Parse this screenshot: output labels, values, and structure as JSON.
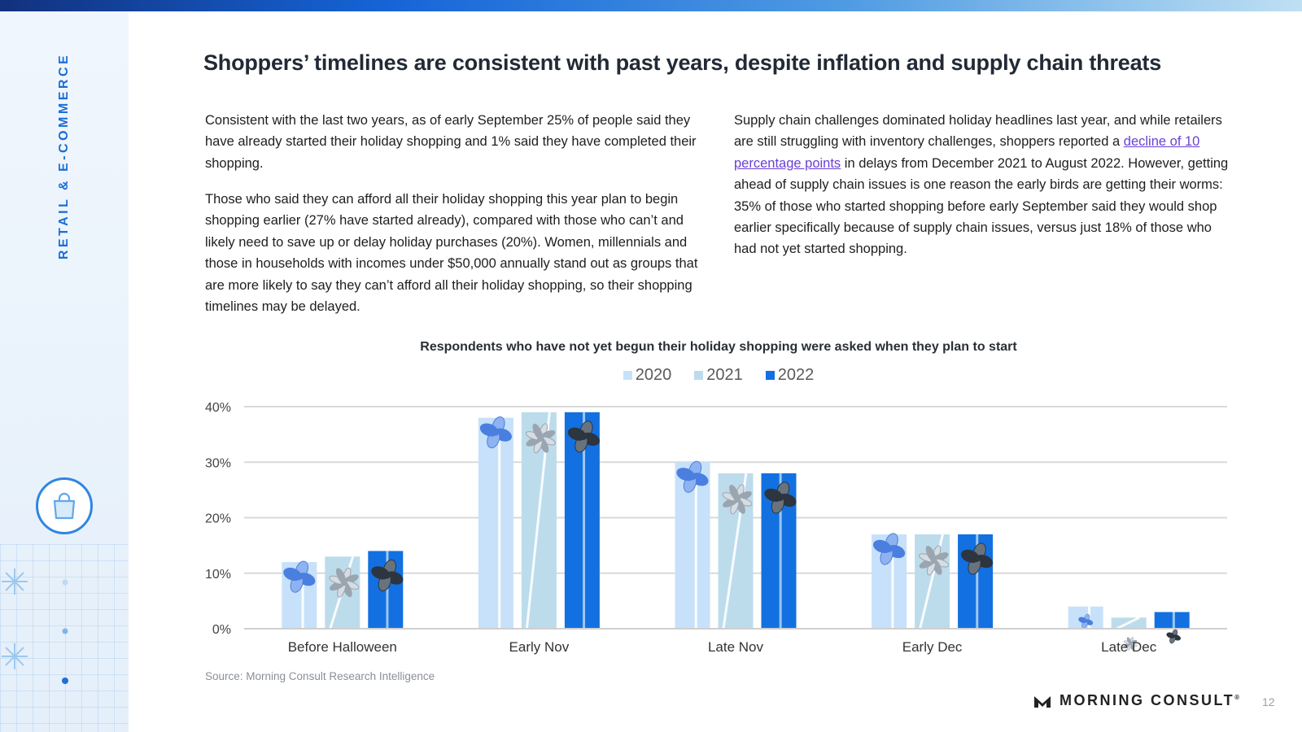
{
  "header": {
    "section": "RETAIL & E-COMMERCE",
    "title": "Shoppers’ timelines are consistent with past years, despite inflation and supply chain threats"
  },
  "body": {
    "p1": "Consistent with the last two years, as of early September 25% of people said they have already started their holiday shopping and 1% said they have completed their shopping.",
    "p2": "Those who said they can afford all their holiday shopping this year plan to begin shopping earlier (27% have started already), compared with those who can’t and likely need to save up or delay holiday purchases (20%). Women, millennials and those in households with incomes under $50,000 annually stand out as groups that are more likely to say they can’t afford all their holiday shopping, so their shopping timelines may be delayed.",
    "p3_before": "Supply chain challenges dominated holiday headlines last year, and while retailers are still struggling with inventory challenges, shoppers reported a ",
    "p3_link": "decline of 10 percentage points",
    "p3_after": " in delays from December 2021 to August 2022. However, getting ahead of supply chain issues is one reason the early birds are getting their worms: 35% of those who started shopping before early September said they would shop earlier specifically because of supply chain issues, versus just 18% of those who had not yet started shopping."
  },
  "chart_data": {
    "type": "bar",
    "title": "Respondents who have not yet begun their holiday shopping were asked when they plan to start",
    "categories": [
      "Before Halloween",
      "Early Nov",
      "Late Nov",
      "Early Dec",
      "Late Dec"
    ],
    "series": [
      {
        "name": "2020",
        "values": [
          12,
          38,
          30,
          17,
          4
        ],
        "color": "#c7e1fa"
      },
      {
        "name": "2021",
        "values": [
          13,
          39,
          28,
          17,
          2
        ],
        "color": "#bcdcec"
      },
      {
        "name": "2022",
        "values": [
          14,
          39,
          28,
          17,
          3
        ],
        "color": "#1270e1"
      }
    ],
    "ylim": [
      0,
      40
    ],
    "yticks": [
      0,
      10,
      20,
      30,
      40
    ],
    "ytick_labels": [
      "0%",
      "10%",
      "20%",
      "30%",
      "40%"
    ],
    "grid": true,
    "legend_position": "top"
  },
  "footer": {
    "source": "Source: Morning Consult Research Intelligence",
    "brand": "MORNING CONSULT",
    "brand_mark": "®",
    "page": "12"
  },
  "icons": {
    "sidebar_badge": "shopping-bag-icon",
    "logo": "morning-consult-logo-icon"
  }
}
